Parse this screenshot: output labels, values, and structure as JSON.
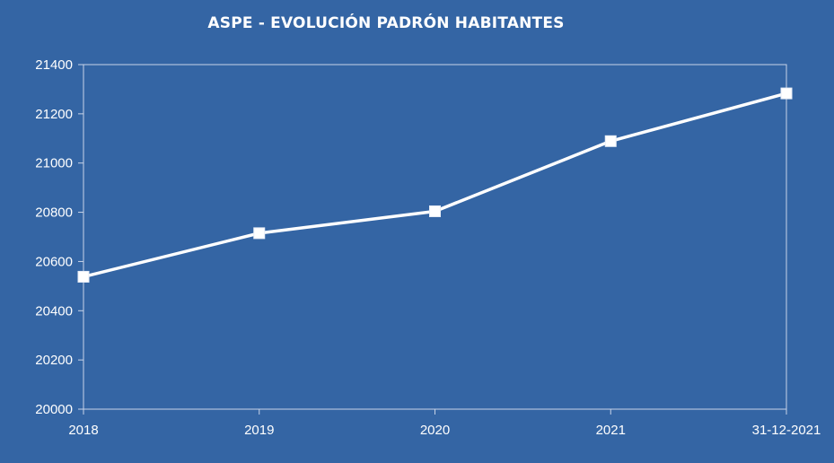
{
  "chart_data": {
    "type": "line",
    "title": "ASPE - EVOLUCIÓN PADRÓN HABITANTES",
    "categories": [
      "2018",
      "2019",
      "2020",
      "2021",
      "31-12-2021"
    ],
    "series": [
      {
        "values": [
          20538,
          20715,
          20804,
          21089,
          21283
        ]
      }
    ],
    "ylim": [
      20000,
      21400
    ],
    "yticks": [
      20000,
      20200,
      20400,
      20600,
      20800,
      21000,
      21200,
      21400
    ],
    "xlabel": "",
    "ylabel": "",
    "grid": false,
    "legend": "none",
    "marker": "square",
    "colors": {
      "background": "#3465a4",
      "line": "#ffffff",
      "axis": "#c8d4e8",
      "text": "#ffffff"
    }
  }
}
